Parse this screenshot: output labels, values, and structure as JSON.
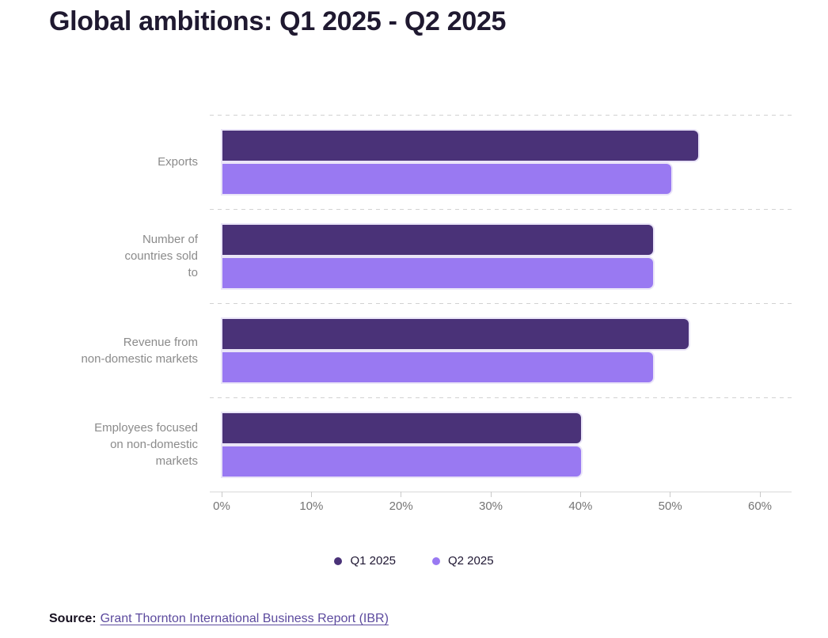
{
  "title": "Global ambitions: Q1 2025 - Q2 2025",
  "chart_data": {
    "type": "bar",
    "orientation": "horizontal",
    "title": "Global ambitions: Q1 2025 - Q2 2025",
    "categories": [
      "Exports",
      "Number of countries sold to",
      "Revenue from non-domestic markets",
      "Employees focused on non-domestic markets"
    ],
    "category_label_lines": [
      [
        "Exports"
      ],
      [
        "Number of",
        "countries sold",
        "to"
      ],
      [
        "Revenue from",
        "non-domestic markets"
      ],
      [
        "Employees focused",
        "on non-domestic",
        "markets"
      ]
    ],
    "series": [
      {
        "name": "Q1 2025",
        "color": "#4a3278",
        "values": [
          53,
          48,
          52,
          40
        ]
      },
      {
        "name": "Q2 2025",
        "color": "#9979f2",
        "values": [
          50,
          48,
          48,
          40
        ]
      }
    ],
    "x_axis": {
      "min": 0,
      "max": 60,
      "unit": "%",
      "tick_labels": [
        "0%",
        "10%",
        "20%",
        "30%",
        "40%",
        "50%",
        "60%"
      ]
    },
    "xlabel": "",
    "ylabel": "",
    "grid": "dashed horizontal separator above each category row",
    "legend_position": "bottom-center"
  },
  "source": {
    "prefix": "Source:",
    "link_text": "Grant Thornton International Business Report (IBR)"
  },
  "colors": {
    "q1": "#4a3278",
    "q2": "#9979f2",
    "title_text": "#1f1930",
    "category_label": "#8b8b8b",
    "tick_label": "#757575",
    "separator": "#d2d2d2",
    "axis_line": "#d8d8d8",
    "link": "#5c4a9e",
    "source_text": "#16101f"
  }
}
